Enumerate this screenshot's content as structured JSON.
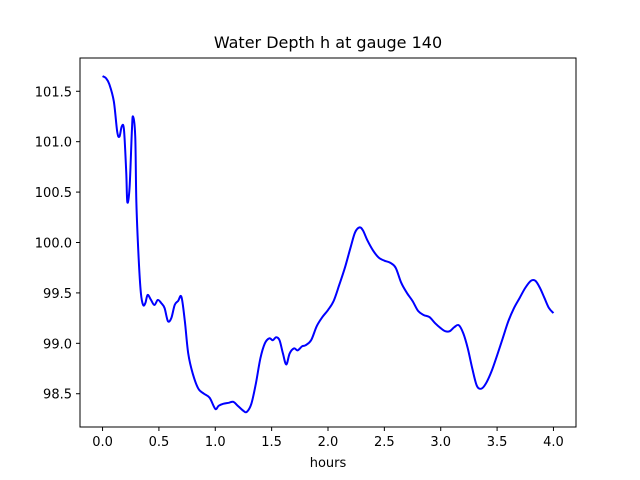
{
  "chart_data": {
    "type": "line",
    "title": "Water Depth h at gauge 140",
    "xlabel": "hours",
    "ylabel": "",
    "xlim": [
      -0.2,
      4.2
    ],
    "ylim": [
      98.17,
      101.83
    ],
    "xticks": [
      0.0,
      0.5,
      1.0,
      1.5,
      2.0,
      2.5,
      3.0,
      3.5,
      4.0
    ],
    "xtick_labels": [
      "0.0",
      "0.5",
      "1.0",
      "1.5",
      "2.0",
      "2.5",
      "3.0",
      "3.5",
      "4.0"
    ],
    "yticks": [
      98.5,
      99.0,
      99.5,
      100.0,
      100.5,
      101.0,
      101.5
    ],
    "ytick_labels": [
      "98.5",
      "99.0",
      "99.5",
      "100.0",
      "100.5",
      "101.0",
      "101.5"
    ],
    "grid": false,
    "legend": "none",
    "series": [
      {
        "color": "#0000ff",
        "x": [
          0.0,
          0.03,
          0.06,
          0.1,
          0.13,
          0.15,
          0.17,
          0.19,
          0.21,
          0.22,
          0.24,
          0.26,
          0.27,
          0.29,
          0.3,
          0.32,
          0.34,
          0.36,
          0.38,
          0.4,
          0.43,
          0.46,
          0.49,
          0.52,
          0.55,
          0.58,
          0.61,
          0.64,
          0.67,
          0.7,
          0.73,
          0.76,
          0.8,
          0.85,
          0.9,
          0.95,
          1.0,
          1.03,
          1.07,
          1.12,
          1.16,
          1.2,
          1.25,
          1.28,
          1.32,
          1.36,
          1.4,
          1.44,
          1.48,
          1.51,
          1.54,
          1.57,
          1.6,
          1.63,
          1.66,
          1.7,
          1.73,
          1.77,
          1.8,
          1.85,
          1.9,
          1.95,
          2.0,
          2.05,
          2.1,
          2.15,
          2.2,
          2.24,
          2.28,
          2.31,
          2.35,
          2.4,
          2.45,
          2.5,
          2.55,
          2.6,
          2.65,
          2.7,
          2.75,
          2.8,
          2.85,
          2.9,
          2.95,
          3.0,
          3.04,
          3.08,
          3.12,
          3.16,
          3.2,
          3.24,
          3.28,
          3.32,
          3.36,
          3.4,
          3.45,
          3.5,
          3.55,
          3.6,
          3.65,
          3.7,
          3.75,
          3.8,
          3.84,
          3.88,
          3.92,
          3.96,
          4.0
        ],
        "y": [
          101.65,
          101.63,
          101.57,
          101.4,
          101.1,
          101.05,
          101.15,
          101.12,
          100.7,
          100.4,
          100.55,
          101.1,
          101.25,
          101.05,
          100.4,
          99.85,
          99.5,
          99.38,
          99.4,
          99.48,
          99.43,
          99.38,
          99.43,
          99.4,
          99.35,
          99.22,
          99.25,
          99.38,
          99.42,
          99.46,
          99.22,
          98.9,
          98.7,
          98.55,
          98.5,
          98.46,
          98.35,
          98.38,
          98.4,
          98.41,
          98.42,
          98.38,
          98.33,
          98.32,
          98.4,
          98.6,
          98.85,
          99.0,
          99.05,
          99.03,
          99.06,
          99.03,
          98.9,
          98.79,
          98.9,
          98.95,
          98.93,
          98.97,
          98.98,
          99.03,
          99.17,
          99.26,
          99.33,
          99.42,
          99.58,
          99.75,
          99.95,
          100.1,
          100.15,
          100.12,
          100.02,
          99.92,
          99.85,
          99.82,
          99.8,
          99.75,
          99.6,
          99.5,
          99.42,
          99.32,
          99.28,
          99.26,
          99.2,
          99.15,
          99.12,
          99.12,
          99.16,
          99.18,
          99.1,
          98.95,
          98.75,
          98.58,
          98.55,
          98.6,
          98.72,
          98.88,
          99.05,
          99.22,
          99.35,
          99.45,
          99.55,
          99.62,
          99.62,
          99.55,
          99.45,
          99.35,
          99.3
        ]
      }
    ]
  }
}
